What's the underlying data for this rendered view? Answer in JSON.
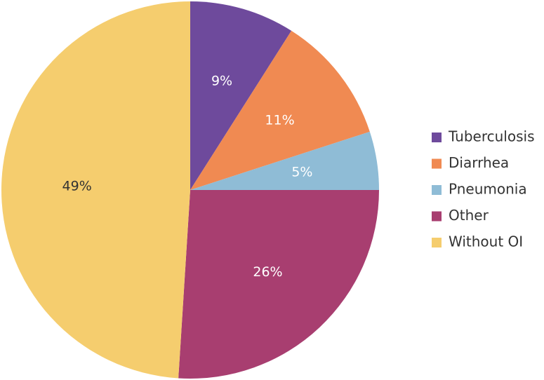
{
  "chart_data": {
    "type": "pie",
    "title": "",
    "legend_position": "right",
    "slices": [
      {
        "name": "Tuberculosis",
        "value": 9,
        "label": "9%",
        "color": "#6e4a9c",
        "label_color": "#ffffff"
      },
      {
        "name": "Diarrhea",
        "value": 11,
        "label": "11%",
        "color": "#f08a52",
        "label_color": "#ffffff"
      },
      {
        "name": "Pneumonia",
        "value": 5,
        "label": "5%",
        "color": "#8fbcd6",
        "label_color": "#ffffff"
      },
      {
        "name": "Other",
        "value": 26,
        "label": "26%",
        "color": "#a83e70",
        "label_color": "#ffffff"
      },
      {
        "name": "Without OI",
        "value": 49,
        "label": "49%",
        "color": "#f5cd6e",
        "label_color": "#333333"
      }
    ]
  }
}
